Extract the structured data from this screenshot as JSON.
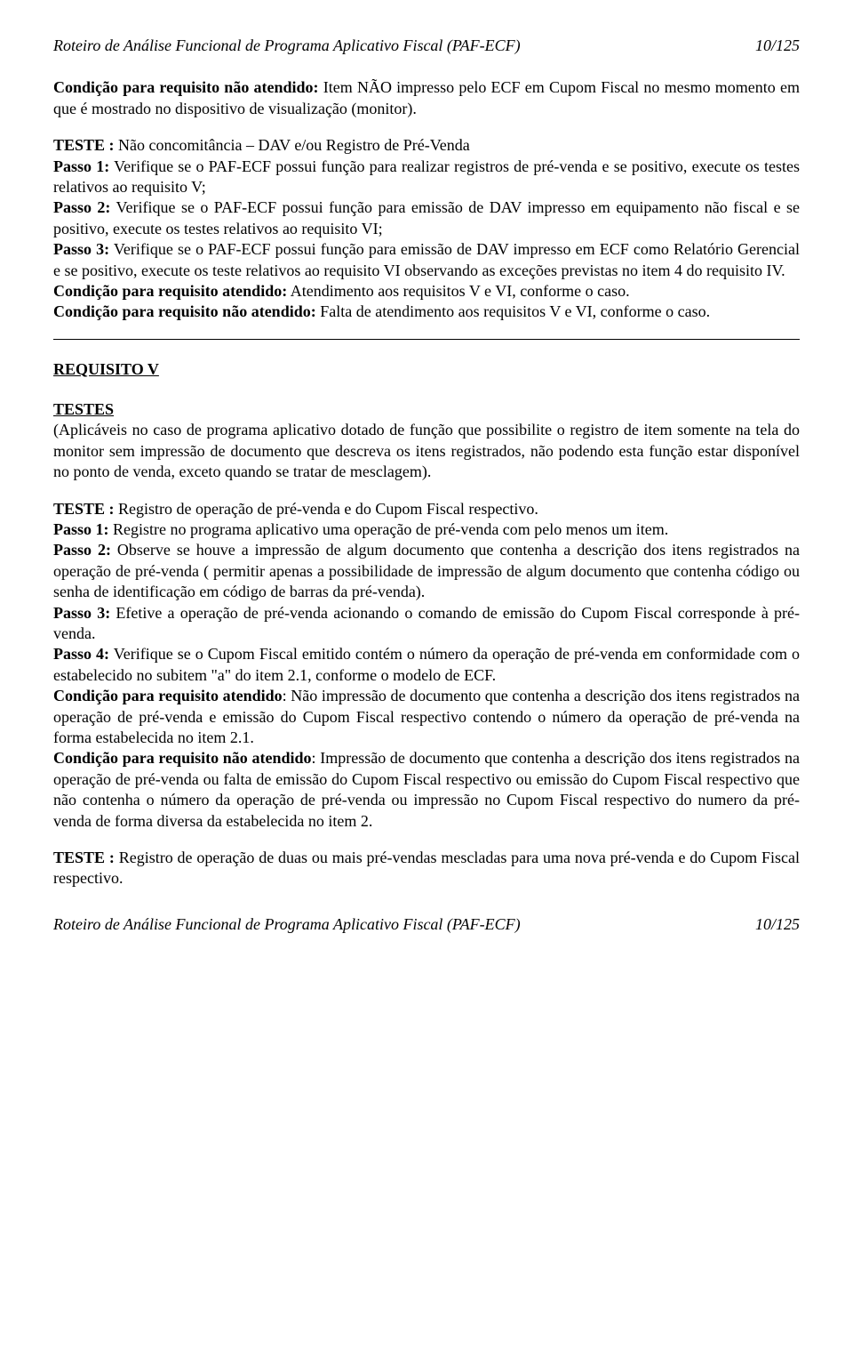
{
  "header": {
    "title": "Roteiro de Análise Funcional de Programa Aplicativo Fiscal (PAF-ECF)",
    "page_num": "10/125"
  },
  "footer": {
    "title": "Roteiro de Análise Funcional de Programa Aplicativo Fiscal (PAF-ECF)",
    "page_num": "10/125"
  },
  "p1": {
    "label": "Condição para requisito não atendido:",
    "text": " Item NÃO impresso pelo ECF em Cupom Fiscal no mesmo momento em que é mostrado no dispositivo de visualização (monitor)."
  },
  "teste1": {
    "title": "TESTE :",
    "title_rest": " Não concomitância – DAV e/ou Registro de Pré-Venda",
    "passo1_label": "Passo 1:",
    "passo1_text": " Verifique se o PAF-ECF possui função para realizar registros de pré-venda e se positivo, execute os testes relativos ao requisito V;",
    "passo2_label": "Passo 2:",
    "passo2_text": " Verifique se o PAF-ECF possui função para emissão de DAV impresso em equipamento não fiscal e se positivo, execute os testes relativos ao requisito VI;",
    "passo3_label": "Passo 3:",
    "passo3_text": " Verifique se o PAF-ECF possui função para emissão de DAV impresso em ECF como Relatório Gerencial e se positivo, execute os teste relativos ao requisito VI observando as exceções previstas no item 4 do requisito IV.",
    "cond_at_label": "Condição para requisito atendido:",
    "cond_at_text": " Atendimento aos requisitos V e VI, conforme o caso.",
    "cond_nat_label": "Condição para requisito não atendido:",
    "cond_nat_text": " Falta de atendimento aos requisitos V e VI, conforme o caso."
  },
  "section": {
    "title": "REQUISITO V"
  },
  "testes2": {
    "title": "TESTES",
    "intro": "(Aplicáveis no caso de programa aplicativo dotado de função que possibilite o registro de item somente na tela do monitor sem impressão de documento que descreva os itens registrados, não podendo esta função estar disponível no ponto de venda, exceto quando se tratar de mesclagem)."
  },
  "teste2a": {
    "title": "TESTE :",
    "title_rest": " Registro de operação de pré-venda e do Cupom Fiscal respectivo.",
    "passo1_label": "Passo 1:",
    "passo1_text": " Registre no programa aplicativo uma operação de pré-venda com pelo menos um item.",
    "passo2_label": "Passo 2:",
    "passo2_text": " Observe se houve a impressão de algum documento que contenha a descrição dos itens registrados na operação de pré-venda ( permitir apenas a possibilidade de impressão de algum documento que contenha código ou senha de identificação em código de barras da pré-venda).",
    "passo3_label": "Passo 3:",
    "passo3_text": " Efetive a operação de pré-venda acionando o comando de emissão do Cupom Fiscal corresponde à pré-venda.",
    "passo4_label": "Passo 4:",
    "passo4_text": " Verifique se o Cupom Fiscal emitido contém o número da operação de pré-venda em conformidade com o estabelecido no subitem \"a\" do item 2.1, conforme o modelo de ECF.",
    "cond_at_label": "Condição para requisito atendido",
    "cond_at_text": ": Não impressão de documento que contenha a descrição dos itens registrados na operação de pré-venda e emissão do Cupom Fiscal respectivo contendo o número da operação de pré-venda na forma estabelecida no item 2.1.",
    "cond_nat_label": "Condição para requisito não atendido",
    "cond_nat_text": ": Impressão de documento que contenha a descrição dos itens registrados na operação de pré-venda ou falta de emissão do Cupom Fiscal respectivo ou emissão do Cupom Fiscal respectivo que não contenha o número da operação de pré-venda ou impressão no Cupom Fiscal respectivo do numero da pré-venda de forma diversa da estabelecida no item 2."
  },
  "teste2b": {
    "title": "TESTE :",
    "title_rest": " Registro de operação de duas ou mais pré-vendas mescladas para uma nova pré-venda e do Cupom Fiscal respectivo."
  }
}
